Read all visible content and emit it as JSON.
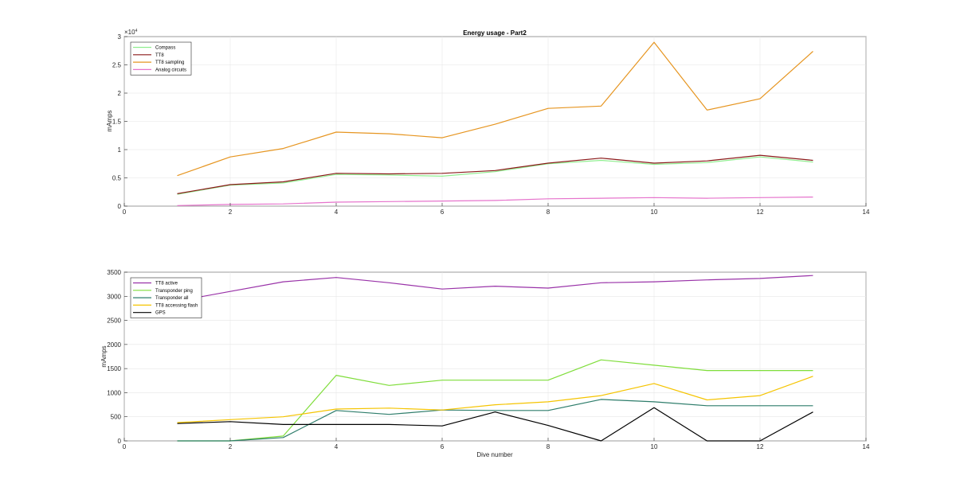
{
  "figure": {
    "background": "#ffffff",
    "axis_color": "#262626",
    "grid_color": "#e6e6e6"
  },
  "chart_data": [
    {
      "type": "line",
      "title": "Energy usage - Part2",
      "xlabel": "",
      "ylabel": "mAmps",
      "exponent_label": "×10",
      "exponent_power": "4",
      "xlim": [
        0,
        14
      ],
      "ylim": [
        0,
        30000
      ],
      "xticks": [
        0,
        2,
        4,
        6,
        8,
        10,
        12,
        14
      ],
      "xtick_labels": [
        "0",
        "2",
        "4",
        "6",
        "8",
        "10",
        "12",
        "14"
      ],
      "yticks": [
        0,
        5000,
        10000,
        15000,
        20000,
        25000,
        30000
      ],
      "ytick_labels": [
        "0",
        "0.5",
        "1",
        "1.5",
        "2",
        "2.5",
        "3"
      ],
      "grid": true,
      "legend_position": "top-left",
      "x": [
        1,
        2,
        3,
        4,
        5,
        6,
        7,
        8,
        9,
        10,
        11,
        12,
        13
      ],
      "series": [
        {
          "name": "Compass",
          "color": "#90ee90",
          "values": [
            2100,
            3700,
            4100,
            5600,
            5500,
            5300,
            6100,
            7500,
            8100,
            7400,
            7700,
            8700,
            7800
          ]
        },
        {
          "name": "TT8",
          "color": "#8b1a1a",
          "values": [
            2200,
            3800,
            4300,
            5800,
            5700,
            5800,
            6300,
            7600,
            8500,
            7600,
            8000,
            9000,
            8100
          ]
        },
        {
          "name": "TT8 sampling",
          "color": "#e69520",
          "values": [
            5400,
            8700,
            10200,
            13100,
            12800,
            12100,
            14500,
            17300,
            17700,
            29000,
            17000,
            19000,
            27400
          ]
        },
        {
          "name": "Analog circuits",
          "color": "#e673cc",
          "values": [
            100,
            300,
            400,
            700,
            800,
            900,
            1000,
            1300,
            1400,
            1500,
            1400,
            1500,
            1600
          ]
        }
      ]
    },
    {
      "type": "line",
      "title": "",
      "xlabel": "Dive number",
      "ylabel": "mAmps",
      "xlim": [
        0,
        14
      ],
      "ylim": [
        0,
        3500
      ],
      "xticks": [
        0,
        2,
        4,
        6,
        8,
        10,
        12,
        14
      ],
      "xtick_labels": [
        "0",
        "2",
        "4",
        "6",
        "8",
        "10",
        "12",
        "14"
      ],
      "yticks": [
        0,
        500,
        1000,
        1500,
        2000,
        2500,
        3000,
        3500
      ],
      "ytick_labels": [
        "0",
        "500",
        "1000",
        "1500",
        "2000",
        "2500",
        "3000",
        "3500"
      ],
      "grid": true,
      "legend_position": "top-left",
      "x": [
        1,
        2,
        3,
        4,
        5,
        6,
        7,
        8,
        9,
        10,
        11,
        12,
        13
      ],
      "series": [
        {
          "name": "TT8 active",
          "color": "#9932a8",
          "values": [
            2900,
            3100,
            3300,
            3390,
            3280,
            3150,
            3210,
            3170,
            3280,
            3300,
            3340,
            3370,
            3430
          ]
        },
        {
          "name": "Transponder ping",
          "color": "#7fdd3a",
          "values": [
            0,
            0,
            100,
            1360,
            1150,
            1260,
            1260,
            1260,
            1680,
            1570,
            1460,
            1460,
            1460
          ]
        },
        {
          "name": "Transponder all",
          "color": "#2e7d6b",
          "values": [
            0,
            0,
            70,
            630,
            550,
            640,
            630,
            630,
            860,
            810,
            730,
            730,
            730
          ]
        },
        {
          "name": "TT8 accessing flash",
          "color": "#f5c400",
          "values": [
            380,
            440,
            500,
            660,
            680,
            640,
            750,
            810,
            940,
            1190,
            850,
            940,
            1340
          ]
        },
        {
          "name": "GPS",
          "color": "#000000",
          "values": [
            360,
            400,
            340,
            340,
            340,
            310,
            600,
            320,
            0,
            690,
            0,
            0,
            600
          ]
        }
      ]
    }
  ]
}
